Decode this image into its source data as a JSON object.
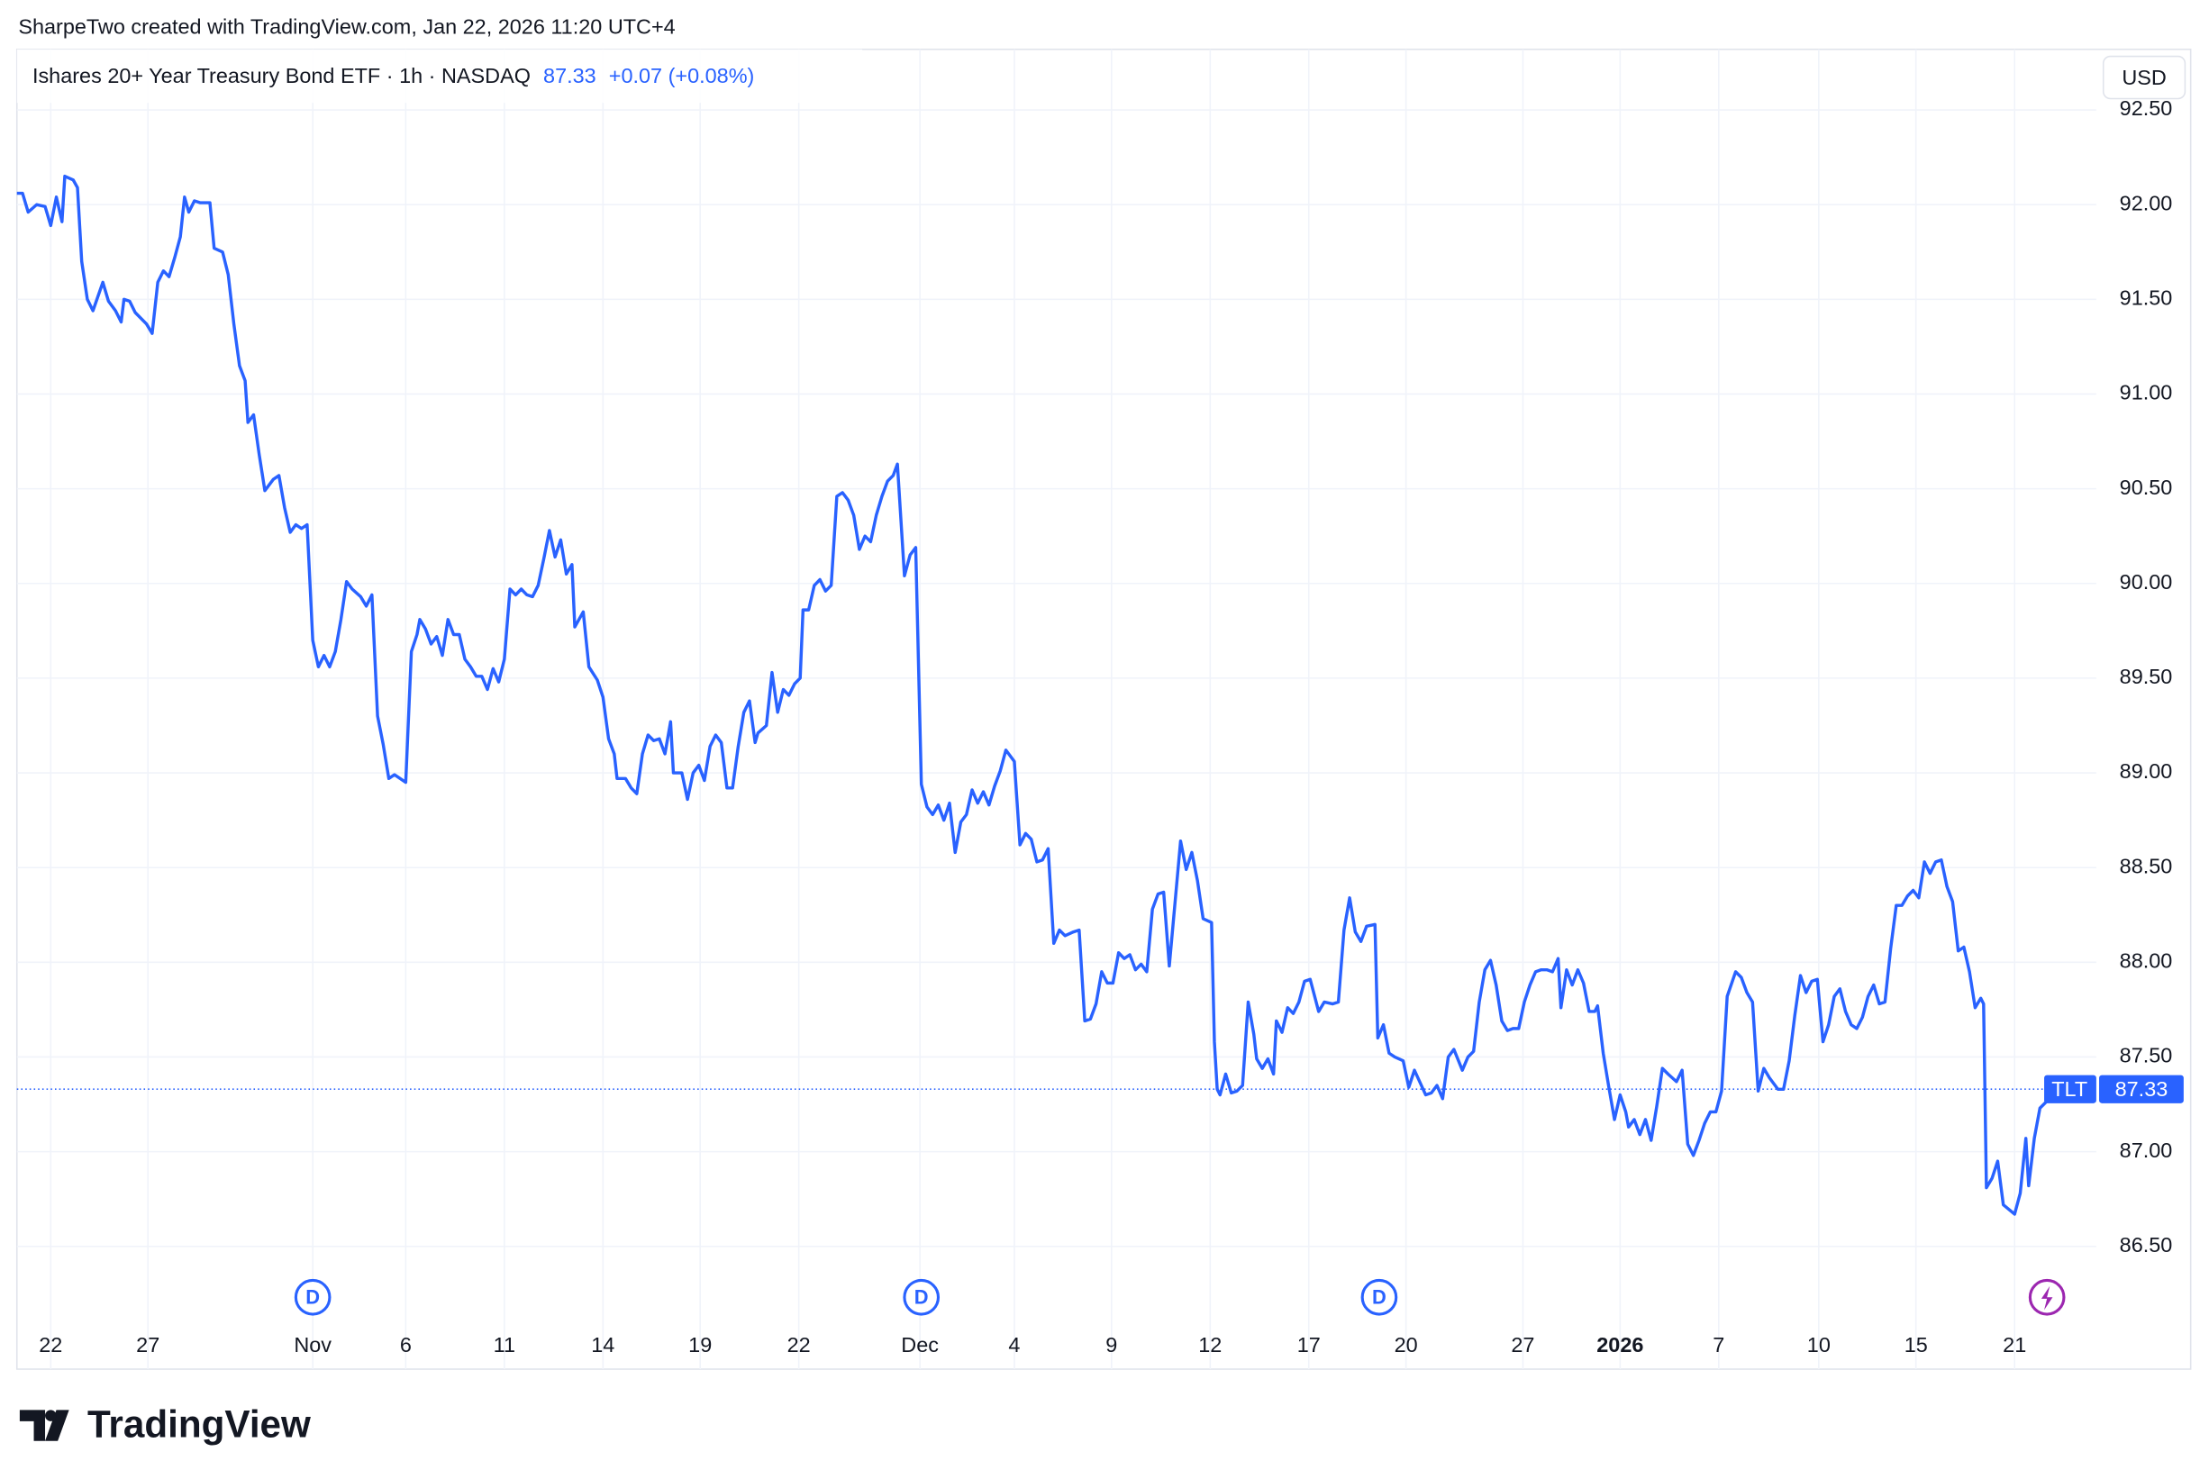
{
  "header": {
    "credit": "SharpeTwo created with TradingView.com, Jan 22, 2026 11:20 UTC+4",
    "logo": "TradingView"
  },
  "chart_data": {
    "type": "line",
    "title": "Ishares 20+ Year Treasury Bond ETF · 1h · NASDAQ",
    "change": "+0.07 (+0.08%)",
    "currency": "USD",
    "symbol": "TLT",
    "last": 87.33,
    "grid": true,
    "xlim": [
      0,
      1476
    ],
    "ylim": [
      86.09,
      92.82
    ],
    "xticks": [
      {
        "value": 24,
        "label": "22"
      },
      {
        "value": 93,
        "label": "27"
      },
      {
        "value": 210,
        "label": "Nov"
      },
      {
        "value": 276,
        "label": "6"
      },
      {
        "value": 346,
        "label": "11"
      },
      {
        "value": 416,
        "label": "14"
      },
      {
        "value": 485,
        "label": "19"
      },
      {
        "value": 555,
        "label": "22"
      },
      {
        "value": 641,
        "label": "Dec"
      },
      {
        "value": 708,
        "label": "4"
      },
      {
        "value": 777,
        "label": "9"
      },
      {
        "value": 847,
        "label": "12"
      },
      {
        "value": 917,
        "label": "17"
      },
      {
        "value": 986,
        "label": "20"
      },
      {
        "value": 1069,
        "label": "27"
      },
      {
        "value": 1138,
        "label": "2026"
      },
      {
        "value": 1208,
        "label": "7"
      },
      {
        "value": 1279,
        "label": "10"
      },
      {
        "value": 1348,
        "label": "15"
      },
      {
        "value": 1418,
        "label": "21"
      }
    ],
    "yticks": [
      {
        "value": 86.5,
        "label": "86.50"
      },
      {
        "value": 87,
        "label": "87.00"
      },
      {
        "value": 87.5,
        "label": "87.50"
      },
      {
        "value": 88,
        "label": "88.00"
      },
      {
        "value": 88.5,
        "label": "88.50"
      },
      {
        "value": 89,
        "label": "89.00"
      },
      {
        "value": 89.5,
        "label": "89.50"
      },
      {
        "value": 90,
        "label": "90.00"
      },
      {
        "value": 90.5,
        "label": "90.50"
      },
      {
        "value": 91,
        "label": "91.00"
      },
      {
        "value": 91.5,
        "label": "91.50"
      },
      {
        "value": 92,
        "label": "92.00"
      },
      {
        "value": 92.5,
        "label": "92.50"
      }
    ],
    "events": [
      {
        "x": 210,
        "label": "D"
      },
      {
        "x": 642,
        "label": "D"
      },
      {
        "x": 967,
        "label": "D"
      }
    ],
    "x": [
      0,
      4,
      8,
      14,
      20,
      24,
      28,
      32,
      34,
      40,
      43,
      46,
      50,
      54,
      61,
      65,
      70,
      74,
      76,
      80,
      84,
      92,
      96,
      100,
      104,
      108,
      112,
      116,
      119,
      122,
      126,
      130,
      134,
      137,
      140,
      146,
      150,
      154,
      158,
      162,
      164,
      168,
      172,
      176,
      182,
      186,
      190,
      194,
      198,
      202,
      206,
      210,
      214,
      218,
      222,
      226,
      230,
      234,
      238,
      244,
      248,
      252,
      256,
      260,
      264,
      268,
      276,
      280,
      284,
      286,
      290,
      294,
      298,
      302,
      306,
      310,
      314,
      318,
      322,
      326,
      330,
      334,
      338,
      342,
      346,
      350,
      354,
      358,
      362,
      366,
      370,
      374,
      378,
      382,
      386,
      390,
      394,
      396,
      402,
      406,
      412,
      416,
      420,
      424,
      426,
      432,
      436,
      440,
      444,
      448,
      452,
      456,
      460,
      464,
      466,
      472,
      476,
      480,
      484,
      488,
      492,
      496,
      500,
      504,
      508,
      512,
      516,
      520,
      524,
      526,
      532,
      536,
      540,
      544,
      548,
      552,
      556,
      558,
      562,
      566,
      570,
      574,
      578,
      582,
      586,
      590,
      594,
      598,
      602,
      606,
      610,
      614,
      618,
      622,
      625,
      630,
      634,
      638,
      642,
      646,
      650,
      654,
      658,
      662,
      666,
      670,
      674,
      678,
      682,
      686,
      690,
      694,
      698,
      702,
      708,
      712,
      716,
      720,
      724,
      728,
      732,
      736,
      740,
      744,
      750,
      754,
      758,
      762,
      766,
      770,
      774,
      778,
      782,
      786,
      790,
      794,
      798,
      802,
      806,
      810,
      814,
      818,
      822,
      826,
      830,
      834,
      838,
      842,
      848,
      850,
      852,
      854,
      858,
      862,
      866,
      870,
      874,
      878,
      880,
      884,
      888,
      892,
      894,
      898,
      902,
      906,
      910,
      914,
      918,
      924,
      928,
      934,
      938,
      942,
      946,
      950,
      954,
      958,
      964,
      966,
      970,
      974,
      978,
      984,
      988,
      992,
      1000,
      1004,
      1008,
      1012,
      1016,
      1020,
      1026,
      1030,
      1034,
      1038,
      1042,
      1046,
      1050,
      1054,
      1058,
      1062,
      1066,
      1070,
      1074,
      1078,
      1082,
      1086,
      1090,
      1094,
      1096,
      1100,
      1104,
      1108,
      1112,
      1116,
      1120,
      1122,
      1126,
      1130,
      1134,
      1138,
      1142,
      1144,
      1148,
      1152,
      1156,
      1160,
      1164,
      1168,
      1172,
      1178,
      1182,
      1186,
      1190,
      1194,
      1198,
      1202,
      1206,
      1210,
      1214,
      1220,
      1224,
      1228,
      1232,
      1236,
      1240,
      1244,
      1250,
      1254,
      1258,
      1262,
      1266,
      1270,
      1274,
      1278,
      1282,
      1286,
      1290,
      1294,
      1298,
      1302,
      1306,
      1310,
      1314,
      1318,
      1322,
      1326,
      1330,
      1334,
      1338,
      1342,
      1346,
      1350,
      1354,
      1358,
      1362,
      1366,
      1370,
      1374,
      1378,
      1382,
      1386,
      1390,
      1394,
      1396,
      1398,
      1402,
      1406,
      1410,
      1418,
      1422,
      1426,
      1428,
      1432,
      1436,
      1440,
      1446
    ],
    "series": [
      {
        "name": "TLT",
        "color": "#2962ff",
        "values": [
          92.06,
          92.06,
          91.96,
          92.0,
          91.99,
          91.89,
          92.04,
          91.91,
          92.15,
          92.13,
          92.09,
          91.7,
          91.5,
          91.44,
          91.59,
          91.49,
          91.44,
          91.38,
          91.5,
          91.49,
          91.43,
          91.37,
          91.32,
          91.59,
          91.65,
          91.62,
          91.72,
          91.83,
          92.04,
          91.96,
          92.02,
          92.01,
          92.01,
          92.01,
          91.77,
          91.75,
          91.63,
          91.37,
          91.15,
          91.07,
          90.85,
          90.89,
          90.68,
          90.49,
          90.55,
          90.57,
          90.4,
          90.27,
          90.31,
          90.29,
          90.31,
          89.7,
          89.56,
          89.62,
          89.56,
          89.64,
          89.81,
          90.01,
          89.97,
          89.93,
          89.88,
          89.94,
          89.3,
          89.15,
          88.97,
          88.99,
          88.95,
          89.64,
          89.73,
          89.81,
          89.76,
          89.68,
          89.72,
          89.62,
          89.81,
          89.73,
          89.73,
          89.6,
          89.56,
          89.51,
          89.51,
          89.44,
          89.55,
          89.48,
          89.6,
          89.97,
          89.94,
          89.97,
          89.94,
          89.93,
          89.99,
          90.13,
          90.28,
          90.14,
          90.23,
          90.05,
          90.1,
          89.77,
          89.85,
          89.56,
          89.49,
          89.4,
          89.18,
          89.1,
          88.97,
          88.97,
          88.92,
          88.89,
          89.1,
          89.2,
          89.17,
          89.18,
          89.1,
          89.27,
          89.0,
          89.0,
          88.86,
          89.0,
          89.04,
          88.96,
          89.14,
          89.2,
          89.16,
          88.92,
          88.92,
          89.14,
          89.32,
          89.38,
          89.16,
          89.21,
          89.25,
          89.53,
          89.32,
          89.44,
          89.41,
          89.47,
          89.5,
          89.86,
          89.86,
          89.99,
          90.02,
          89.96,
          89.99,
          90.46,
          90.48,
          90.44,
          90.36,
          90.18,
          90.25,
          90.22,
          90.36,
          90.46,
          90.54,
          90.57,
          90.63,
          90.04,
          90.15,
          90.19,
          88.94,
          88.82,
          88.78,
          88.83,
          88.75,
          88.84,
          88.58,
          88.74,
          88.78,
          88.91,
          88.84,
          88.9,
          88.83,
          88.93,
          89.01,
          89.12,
          89.06,
          88.62,
          88.68,
          88.65,
          88.53,
          88.54,
          88.6,
          88.1,
          88.17,
          88.14,
          88.16,
          88.17,
          87.69,
          87.7,
          87.78,
          87.95,
          87.89,
          87.89,
          88.05,
          88.02,
          88.04,
          87.96,
          87.99,
          87.95,
          88.28,
          88.36,
          88.37,
          87.98,
          88.31,
          88.64,
          88.49,
          88.58,
          88.43,
          88.23,
          88.21,
          87.58,
          87.33,
          87.3,
          87.41,
          87.31,
          87.32,
          87.35,
          87.79,
          87.62,
          87.49,
          87.44,
          87.49,
          87.41,
          87.69,
          87.63,
          87.76,
          87.73,
          87.79,
          87.9,
          87.91,
          87.74,
          87.79,
          87.78,
          87.79,
          88.17,
          88.34,
          88.16,
          88.11,
          88.19,
          88.2,
          87.6,
          87.67,
          87.52,
          87.5,
          87.48,
          87.34,
          87.43,
          87.3,
          87.31,
          87.35,
          87.28,
          87.5,
          87.54,
          87.43,
          87.5,
          87.53,
          87.79,
          87.96,
          88.01,
          87.88,
          87.69,
          87.64,
          87.65,
          87.65,
          87.79,
          87.88,
          87.95,
          87.96,
          87.96,
          87.95,
          88.02,
          87.76,
          87.96,
          87.88,
          87.96,
          87.89,
          87.74,
          87.74,
          87.77,
          87.52,
          87.34,
          87.17,
          87.3,
          87.21,
          87.13,
          87.17,
          87.09,
          87.17,
          87.06,
          87.24,
          87.44,
          87.41,
          87.37,
          87.43,
          87.04,
          86.98,
          87.06,
          87.15,
          87.21,
          87.21,
          87.32,
          87.82,
          87.95,
          87.92,
          87.84,
          87.79,
          87.32,
          87.44,
          87.39,
          87.33,
          87.33,
          87.48,
          87.72,
          87.93,
          87.84,
          87.9,
          87.91,
          87.58,
          87.67,
          87.82,
          87.86,
          87.74,
          87.67,
          87.65,
          87.71,
          87.82,
          87.88,
          87.78,
          87.79,
          88.07,
          88.3,
          88.3,
          88.35,
          88.38,
          88.34,
          88.53,
          88.47,
          88.53,
          88.54,
          88.4,
          88.32,
          88.06,
          88.08,
          87.95,
          87.76,
          87.81,
          87.78,
          86.81,
          86.86,
          86.95,
          86.72,
          86.67,
          86.78,
          87.07,
          86.82,
          87.07,
          87.23,
          87.26,
          87.33
        ]
      }
    ]
  }
}
